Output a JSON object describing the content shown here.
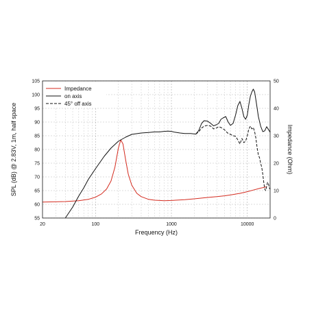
{
  "chart_data": {
    "type": "line",
    "xscale": "log",
    "xlabel": "Frequency (Hz)",
    "ylabel_left": "SPL (dB) @ 2.83V, 1m, half space",
    "ylabel_right": "Impedance (Ohm)",
    "xlim": [
      20,
      20000
    ],
    "ylim_left": [
      55,
      105
    ],
    "ylim_right": [
      0,
      50
    ],
    "xticks": [
      {
        "v": 20,
        "label": "20"
      },
      {
        "v": 100,
        "label": "100"
      },
      {
        "v": 1000,
        "label": "1000"
      },
      {
        "v": 10000,
        "label": "10000"
      }
    ],
    "yticks_left": [
      "55",
      "60",
      "65",
      "70",
      "75",
      "80",
      "85",
      "90",
      "95",
      "100",
      "105"
    ],
    "yticks_right": [
      "0",
      "10",
      "20",
      "30",
      "40",
      "50"
    ],
    "grid": true,
    "legend_position": "top-left",
    "series": [
      {
        "name": "Impedance",
        "axis": "right",
        "color": "#d42a1e",
        "dash": "none",
        "points": [
          [
            20,
            5.8
          ],
          [
            40,
            6.0
          ],
          [
            60,
            6.3
          ],
          [
            80,
            6.8
          ],
          [
            100,
            7.6
          ],
          [
            120,
            8.8
          ],
          [
            140,
            10.6
          ],
          [
            160,
            13.5
          ],
          [
            180,
            18.5
          ],
          [
            200,
            25.5
          ],
          [
            215,
            28.5
          ],
          [
            230,
            27.0
          ],
          [
            250,
            21.0
          ],
          [
            270,
            16.0
          ],
          [
            300,
            12.0
          ],
          [
            350,
            9.0
          ],
          [
            400,
            7.8
          ],
          [
            500,
            6.8
          ],
          [
            600,
            6.5
          ],
          [
            700,
            6.4
          ],
          [
            800,
            6.3
          ],
          [
            1000,
            6.4
          ],
          [
            1500,
            6.7
          ],
          [
            2000,
            7.0
          ],
          [
            3000,
            7.5
          ],
          [
            4000,
            7.8
          ],
          [
            5000,
            8.1
          ],
          [
            6000,
            8.4
          ],
          [
            8000,
            9.0
          ],
          [
            10000,
            9.6
          ],
          [
            12000,
            10.2
          ],
          [
            15000,
            10.9
          ],
          [
            18000,
            11.4
          ]
        ]
      },
      {
        "name": "on axis",
        "axis": "left",
        "color": "#111111",
        "dash": "none",
        "points": [
          [
            40,
            55
          ],
          [
            50,
            59
          ],
          [
            60,
            63
          ],
          [
            70,
            66
          ],
          [
            80,
            69
          ],
          [
            100,
            73
          ],
          [
            130,
            77.5
          ],
          [
            160,
            80.5
          ],
          [
            200,
            83
          ],
          [
            250,
            84.5
          ],
          [
            300,
            85.5
          ],
          [
            400,
            86
          ],
          [
            500,
            86.2
          ],
          [
            600,
            86.4
          ],
          [
            700,
            86.4
          ],
          [
            800,
            86.6
          ],
          [
            900,
            86.7
          ],
          [
            1000,
            86.6
          ],
          [
            1100,
            86.3
          ],
          [
            1300,
            86
          ],
          [
            1500,
            85.8
          ],
          [
            1800,
            85.8
          ],
          [
            2100,
            85.6
          ],
          [
            2300,
            87
          ],
          [
            2500,
            89.5
          ],
          [
            2700,
            90.5
          ],
          [
            3000,
            90.3
          ],
          [
            3300,
            89.5
          ],
          [
            3600,
            88.6
          ],
          [
            3900,
            89
          ],
          [
            4200,
            89.5
          ],
          [
            4500,
            91
          ],
          [
            4800,
            91.5
          ],
          [
            5200,
            92
          ],
          [
            5600,
            90
          ],
          [
            6000,
            88.8
          ],
          [
            6500,
            89.5
          ],
          [
            7000,
            92.5
          ],
          [
            7500,
            96
          ],
          [
            8000,
            97.5
          ],
          [
            8500,
            95
          ],
          [
            9000,
            92
          ],
          [
            9500,
            91
          ],
          [
            10000,
            92.5
          ],
          [
            10500,
            96.5
          ],
          [
            11000,
            99.5
          ],
          [
            11500,
            101
          ],
          [
            12000,
            102
          ],
          [
            12500,
            101
          ],
          [
            13000,
            98
          ],
          [
            13500,
            95
          ],
          [
            14000,
            92
          ],
          [
            15000,
            88.5
          ],
          [
            16000,
            86.5
          ],
          [
            17000,
            86.8
          ],
          [
            18000,
            88.3
          ],
          [
            19000,
            87.3
          ],
          [
            20000,
            86.3
          ]
        ]
      },
      {
        "name": "45° off axis",
        "axis": "left",
        "color": "#111111",
        "dash": "4 2",
        "points": [
          [
            2100,
            85.6
          ],
          [
            2300,
            86.5
          ],
          [
            2500,
            87.8
          ],
          [
            2700,
            88.5
          ],
          [
            3000,
            88.8
          ],
          [
            3300,
            88.5
          ],
          [
            3600,
            87.5
          ],
          [
            3900,
            87.8
          ],
          [
            4200,
            88.3
          ],
          [
            4500,
            88
          ],
          [
            5000,
            87.2
          ],
          [
            5500,
            86
          ],
          [
            6000,
            85.5
          ],
          [
            6500,
            85
          ],
          [
            7000,
            84.8
          ],
          [
            7500,
            83.5
          ],
          [
            8000,
            82
          ],
          [
            8500,
            84
          ],
          [
            9000,
            82.5
          ],
          [
            9500,
            83
          ],
          [
            10000,
            85
          ],
          [
            10500,
            87.5
          ],
          [
            11000,
            88.5
          ],
          [
            11500,
            87.5
          ],
          [
            12000,
            88
          ],
          [
            12500,
            86.5
          ],
          [
            13000,
            84
          ],
          [
            13500,
            80.5
          ],
          [
            14000,
            78
          ],
          [
            14500,
            77
          ],
          [
            15000,
            75
          ],
          [
            15500,
            73.5
          ],
          [
            16000,
            71
          ],
          [
            16500,
            68
          ],
          [
            17000,
            65.5
          ],
          [
            17500,
            65
          ],
          [
            18000,
            66.5
          ],
          [
            18500,
            68
          ],
          [
            19000,
            67.5
          ],
          [
            19500,
            66
          ],
          [
            20000,
            65.5
          ]
        ]
      }
    ]
  }
}
